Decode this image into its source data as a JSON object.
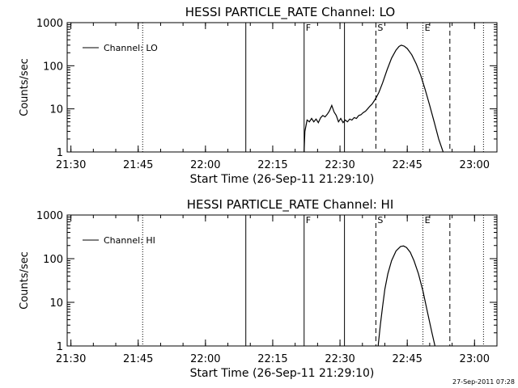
{
  "footer_stamp": "27-Sep-2011 07:28",
  "chart_data": [
    {
      "type": "line",
      "title": "HESSI PARTICLE_RATE Channel: LO",
      "xlabel": "Start Time (26-Sep-11 21:29:10)",
      "ylabel": "Counts/sec",
      "y_scale": "log",
      "xlim": [
        "21:29:10",
        "23:05:00"
      ],
      "ylim": [
        1,
        1000
      ],
      "x_ticks": [
        "21:30",
        "21:45",
        "22:00",
        "22:15",
        "22:30",
        "22:45",
        "23:00"
      ],
      "y_ticks": [
        {
          "value": 1,
          "label": "1"
        },
        {
          "value": 10,
          "label": "10"
        },
        {
          "value": 100,
          "label": "100"
        },
        {
          "value": 1000,
          "label": "1000"
        }
      ],
      "legend": {
        "label": "Channel: LO",
        "position": "top-left"
      },
      "vertical_lines": [
        {
          "t": "21:46:00",
          "style": "dotted",
          "label": ""
        },
        {
          "t": "22:09:00",
          "style": "solid",
          "label": ""
        },
        {
          "t": "22:22:00",
          "style": "solid",
          "label": "F"
        },
        {
          "t": "22:31:00",
          "style": "solid",
          "label": ""
        },
        {
          "t": "22:38:00",
          "style": "dashed",
          "label": "S"
        },
        {
          "t": "22:48:30",
          "style": "dotted",
          "label": "E"
        },
        {
          "t": "22:54:30",
          "style": "dashed",
          "label": ""
        },
        {
          "t": "23:02:00",
          "style": "dotted",
          "label": ""
        }
      ],
      "series": [
        {
          "name": "Channel: LO",
          "points": [
            [
              "22:22:00",
              1.0
            ],
            [
              "22:22:10",
              3.0
            ],
            [
              "22:22:40",
              5.5
            ],
            [
              "22:23:10",
              5.0
            ],
            [
              "22:23:40",
              6.0
            ],
            [
              "22:24:10",
              5.0
            ],
            [
              "22:24:40",
              5.8
            ],
            [
              "22:25:10",
              4.8
            ],
            [
              "22:25:40",
              6.2
            ],
            [
              "22:26:10",
              7.0
            ],
            [
              "22:26:40",
              6.5
            ],
            [
              "22:27:10",
              7.5
            ],
            [
              "22:27:40",
              9.0
            ],
            [
              "22:28:10",
              12.0
            ],
            [
              "22:28:40",
              8.5
            ],
            [
              "22:29:10",
              7.0
            ],
            [
              "22:29:40",
              5.0
            ],
            [
              "22:30:10",
              6.0
            ],
            [
              "22:30:40",
              4.8
            ],
            [
              "22:31:10",
              5.5
            ],
            [
              "22:31:40",
              5.0
            ],
            [
              "22:32:10",
              5.8
            ],
            [
              "22:32:40",
              5.5
            ],
            [
              "22:33:10",
              6.3
            ],
            [
              "22:33:40",
              6.0
            ],
            [
              "22:34:10",
              7.0
            ],
            [
              "22:34:40",
              7.3
            ],
            [
              "22:35:10",
              8.2
            ],
            [
              "22:35:40",
              8.8
            ],
            [
              "22:36:10",
              10.0
            ],
            [
              "22:36:40",
              11.5
            ],
            [
              "22:37:10",
              13.0
            ],
            [
              "22:37:40",
              15.5
            ],
            [
              "22:38:10",
              19.0
            ],
            [
              "22:38:40",
              24.0
            ],
            [
              "22:39:30",
              40.0
            ],
            [
              "22:40:30",
              80.0
            ],
            [
              "22:41:30",
              150.0
            ],
            [
              "22:42:30",
              230.0
            ],
            [
              "22:43:10",
              280.0
            ],
            [
              "22:43:40",
              300.0
            ],
            [
              "22:44:20",
              285.0
            ],
            [
              "22:45:00",
              250.0
            ],
            [
              "22:46:00",
              180.0
            ],
            [
              "22:47:00",
              110.0
            ],
            [
              "22:48:00",
              60.0
            ],
            [
              "22:49:00",
              28.0
            ],
            [
              "22:50:00",
              12.0
            ],
            [
              "22:51:00",
              5.0
            ],
            [
              "22:52:00",
              2.0
            ],
            [
              "22:53:00",
              1.0
            ]
          ]
        }
      ]
    },
    {
      "type": "line",
      "title": "HESSI PARTICLE_RATE Channel: HI",
      "xlabel": "Start Time (26-Sep-11 21:29:10)",
      "ylabel": "Counts/sec",
      "y_scale": "log",
      "xlim": [
        "21:29:10",
        "23:05:00"
      ],
      "ylim": [
        1,
        1000
      ],
      "x_ticks": [
        "21:30",
        "21:45",
        "22:00",
        "22:15",
        "22:30",
        "22:45",
        "23:00"
      ],
      "y_ticks": [
        {
          "value": 1,
          "label": "1"
        },
        {
          "value": 10,
          "label": "10"
        },
        {
          "value": 100,
          "label": "100"
        },
        {
          "value": 1000,
          "label": "1000"
        }
      ],
      "legend": {
        "label": "Channel: HI",
        "position": "top-left"
      },
      "vertical_lines": [
        {
          "t": "21:46:00",
          "style": "dotted",
          "label": ""
        },
        {
          "t": "22:09:00",
          "style": "solid",
          "label": ""
        },
        {
          "t": "22:22:00",
          "style": "solid",
          "label": "F"
        },
        {
          "t": "22:31:00",
          "style": "solid",
          "label": ""
        },
        {
          "t": "22:38:00",
          "style": "dashed",
          "label": "S"
        },
        {
          "t": "22:48:30",
          "style": "dotted",
          "label": "E"
        },
        {
          "t": "22:54:30",
          "style": "dashed",
          "label": ""
        },
        {
          "t": "23:02:00",
          "style": "dotted",
          "label": ""
        }
      ],
      "series": [
        {
          "name": "Channel: HI",
          "points": [
            [
              "22:38:30",
              1.0
            ],
            [
              "22:39:00",
              3.0
            ],
            [
              "22:39:30",
              8.0
            ],
            [
              "22:40:00",
              20.0
            ],
            [
              "22:40:40",
              45.0
            ],
            [
              "22:41:30",
              90.0
            ],
            [
              "22:42:30",
              150.0
            ],
            [
              "22:43:30",
              190.0
            ],
            [
              "22:44:10",
              195.0
            ],
            [
              "22:44:50",
              180.0
            ],
            [
              "22:45:40",
              140.0
            ],
            [
              "22:46:30",
              90.0
            ],
            [
              "22:47:30",
              45.0
            ],
            [
              "22:48:30",
              18.0
            ],
            [
              "22:49:30",
              6.0
            ],
            [
              "22:50:30",
              2.0
            ],
            [
              "22:51:10",
              1.0
            ]
          ]
        }
      ]
    }
  ]
}
